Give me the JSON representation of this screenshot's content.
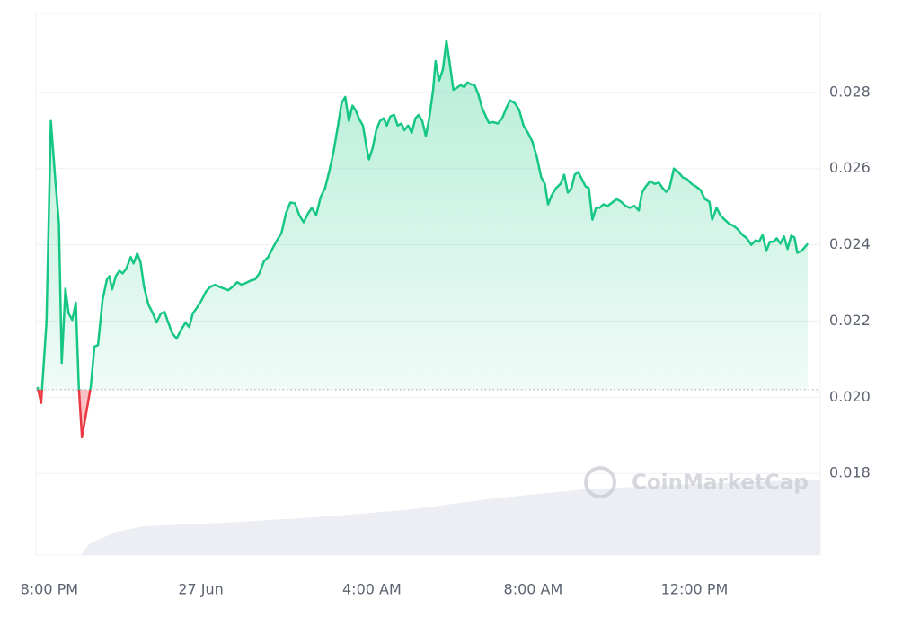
{
  "chart_data": {
    "type": "line",
    "up_color": "#16c784",
    "down_color": "#ea3943",
    "baseline": 0.0202,
    "watermark": "CoinMarketCap",
    "grid": true,
    "xlim": [
      -0.33,
      19.12
    ],
    "xticks": [
      {
        "value": 0,
        "label": "8:00 PM"
      },
      {
        "value": 3.76,
        "label": "27 Jun"
      },
      {
        "value": 8,
        "label": "4:00 AM"
      },
      {
        "value": 12,
        "label": "8:00 AM"
      },
      {
        "value": 16,
        "label": "12:00 PM"
      }
    ],
    "ylim": [
      0.01586,
      0.03007
    ],
    "yticks": [
      0.018,
      {
        "value": 0.02,
        "label": "0.020"
      },
      0.022,
      0.024,
      0.026,
      0.028
    ],
    "x": [
      -0.29,
      -0.2,
      -0.07,
      0.04,
      0.15,
      0.24,
      0.31,
      0.4,
      0.48,
      0.57,
      0.66,
      0.73,
      0.81,
      0.92,
      1.03,
      1.12,
      1.21,
      1.32,
      1.43,
      1.49,
      1.56,
      1.65,
      1.74,
      1.82,
      1.91,
      2.02,
      2.09,
      2.18,
      2.26,
      2.35,
      2.46,
      2.57,
      2.66,
      2.77,
      2.86,
      2.95,
      3.05,
      3.16,
      3.27,
      3.38,
      3.47,
      3.56,
      3.67,
      3.78,
      3.89,
      4,
      4.11,
      4.22,
      4.33,
      4.44,
      4.55,
      4.66,
      4.77,
      4.88,
      4.99,
      5.1,
      5.21,
      5.32,
      5.43,
      5.54,
      5.65,
      5.76,
      5.87,
      5.98,
      6.09,
      6.2,
      6.31,
      6.42,
      6.51,
      6.62,
      6.73,
      6.84,
      6.95,
      7.05,
      7.16,
      7.25,
      7.34,
      7.43,
      7.52,
      7.6,
      7.69,
      7.78,
      7.87,
      7.93,
      8.02,
      8.11,
      8.2,
      8.29,
      8.37,
      8.46,
      8.55,
      8.64,
      8.73,
      8.81,
      8.9,
      8.99,
      9.08,
      9.16,
      9.25,
      9.34,
      9.43,
      9.52,
      9.58,
      9.67,
      9.76,
      9.85,
      9.93,
      10.02,
      10.11,
      10.2,
      10.29,
      10.37,
      10.46,
      10.55,
      10.64,
      10.73,
      10.81,
      10.9,
      11.01,
      11.12,
      11.23,
      11.34,
      11.43,
      11.54,
      11.65,
      11.76,
      11.87,
      11.98,
      12.09,
      12.2,
      12.29,
      12.37,
      12.46,
      12.57,
      12.68,
      12.77,
      12.86,
      12.95,
      13.03,
      13.12,
      13.21,
      13.3,
      13.38,
      13.47,
      13.56,
      13.65,
      13.74,
      13.85,
      13.96,
      14.07,
      14.18,
      14.29,
      14.4,
      14.51,
      14.62,
      14.7,
      14.79,
      14.9,
      15.01,
      15.12,
      15.21,
      15.3,
      15.38,
      15.49,
      15.6,
      15.71,
      15.82,
      15.93,
      16.04,
      16.15,
      16.26,
      16.37,
      16.44,
      16.55,
      16.64,
      16.75,
      16.86,
      16.97,
      17.08,
      17.19,
      17.3,
      17.41,
      17.52,
      17.6,
      17.69,
      17.78,
      17.87,
      17.96,
      18.04,
      18.13,
      18.22,
      18.31,
      18.4,
      18.48,
      18.55,
      18.65,
      18.73,
      18.81
    ],
    "values": [
      0.02027,
      0.01985,
      0.02196,
      0.02725,
      0.02572,
      0.02455,
      0.0209,
      0.02285,
      0.0222,
      0.02203,
      0.02248,
      0.02032,
      0.01895,
      0.01961,
      0.02027,
      0.02133,
      0.02137,
      0.02255,
      0.02309,
      0.02318,
      0.02283,
      0.02318,
      0.02332,
      0.02325,
      0.02337,
      0.02368,
      0.02351,
      0.02377,
      0.02356,
      0.0229,
      0.02243,
      0.0222,
      0.02196,
      0.0222,
      0.02224,
      0.02196,
      0.02168,
      0.02154,
      0.02177,
      0.02196,
      0.02184,
      0.0222,
      0.02236,
      0.02255,
      0.02278,
      0.0229,
      0.02295,
      0.0229,
      0.02285,
      0.02281,
      0.0229,
      0.02302,
      0.02295,
      0.023,
      0.02306,
      0.02309,
      0.02325,
      0.02356,
      0.02368,
      0.02391,
      0.02412,
      0.02431,
      0.02483,
      0.02511,
      0.02509,
      0.02478,
      0.02459,
      0.02483,
      0.02497,
      0.02478,
      0.02525,
      0.02549,
      0.02596,
      0.02643,
      0.02713,
      0.02772,
      0.02788,
      0.02725,
      0.02765,
      0.02753,
      0.02729,
      0.02713,
      0.02654,
      0.02624,
      0.02654,
      0.02701,
      0.02725,
      0.02732,
      0.02713,
      0.02737,
      0.02741,
      0.02713,
      0.02718,
      0.02701,
      0.02713,
      0.02694,
      0.02732,
      0.02741,
      0.02725,
      0.02685,
      0.02737,
      0.02807,
      0.02882,
      0.02831,
      0.02859,
      0.02936,
      0.02878,
      0.02807,
      0.02812,
      0.02819,
      0.02814,
      0.02826,
      0.02821,
      0.02819,
      0.02795,
      0.0276,
      0.02741,
      0.0272,
      0.02722,
      0.02718,
      0.02732,
      0.0276,
      0.02779,
      0.02772,
      0.02755,
      0.02713,
      0.02694,
      0.02671,
      0.02631,
      0.02577,
      0.0256,
      0.02506,
      0.0253,
      0.02549,
      0.0256,
      0.02584,
      0.02537,
      0.02549,
      0.02584,
      0.02591,
      0.02572,
      0.02553,
      0.02549,
      0.02466,
      0.02497,
      0.02497,
      0.02506,
      0.02502,
      0.02511,
      0.0252,
      0.02513,
      0.02502,
      0.02497,
      0.02502,
      0.0249,
      0.02537,
      0.02553,
      0.02567,
      0.0256,
      0.02563,
      0.02549,
      0.02539,
      0.02549,
      0.026,
      0.02591,
      0.02577,
      0.02572,
      0.0256,
      0.02553,
      0.02544,
      0.0252,
      0.02513,
      0.02466,
      0.02497,
      0.02478,
      0.02466,
      0.02455,
      0.0245,
      0.0244,
      0.02426,
      0.02417,
      0.024,
      0.02412,
      0.02408,
      0.02426,
      0.02384,
      0.02408,
      0.02408,
      0.02417,
      0.02403,
      0.02422,
      0.02389,
      0.02424,
      0.02419,
      0.02379,
      0.02384,
      0.02393,
      0.02403
    ]
  }
}
